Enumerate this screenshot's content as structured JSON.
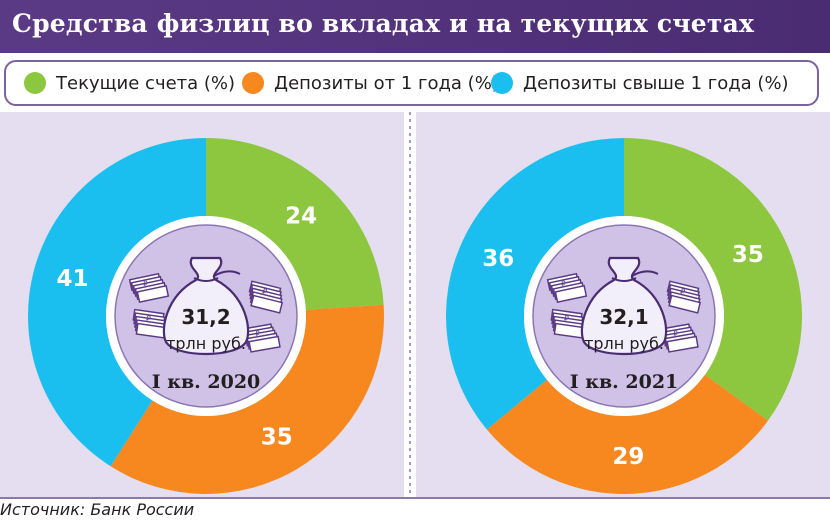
{
  "title": "Средства физлиц во вкладах и на текущих счетах",
  "legend": [
    {
      "label": "Текущие счета (%)",
      "color": "#8dc63f"
    },
    {
      "label": "Депозиты от 1 года (%)",
      "color": "#f7881f"
    },
    {
      "label": "Депозиты свыше 1 года (%)",
      "color": "#1bbfef"
    }
  ],
  "chart_data": [
    {
      "type": "pie",
      "title": "I кв. 2020",
      "center_value": "31,2",
      "center_unit": "трлн руб.",
      "series": [
        {
          "name": "Текущие счета (%)",
          "value": 24,
          "color": "#8dc63f"
        },
        {
          "name": "Депозиты от 1 года (%)",
          "value": 35,
          "color": "#f7881f"
        },
        {
          "name": "Депозиты свыше 1 года (%)",
          "value": 41,
          "color": "#1bbfef"
        }
      ]
    },
    {
      "type": "pie",
      "title": "I кв. 2021",
      "center_value": "32,1",
      "center_unit": "трлн руб.",
      "series": [
        {
          "name": "Текущие счета (%)",
          "value": 35,
          "color": "#8dc63f"
        },
        {
          "name": "Депозиты от 1 года (%)",
          "value": 29,
          "color": "#f7881f"
        },
        {
          "name": "Депозиты свыше 1 года (%)",
          "value": 36,
          "color": "#1bbfef"
        }
      ]
    }
  ],
  "source": "Источник: Банк России",
  "icons": {
    "center": "money-bag-icon",
    "bundles": "banknote-bundle-icon"
  }
}
